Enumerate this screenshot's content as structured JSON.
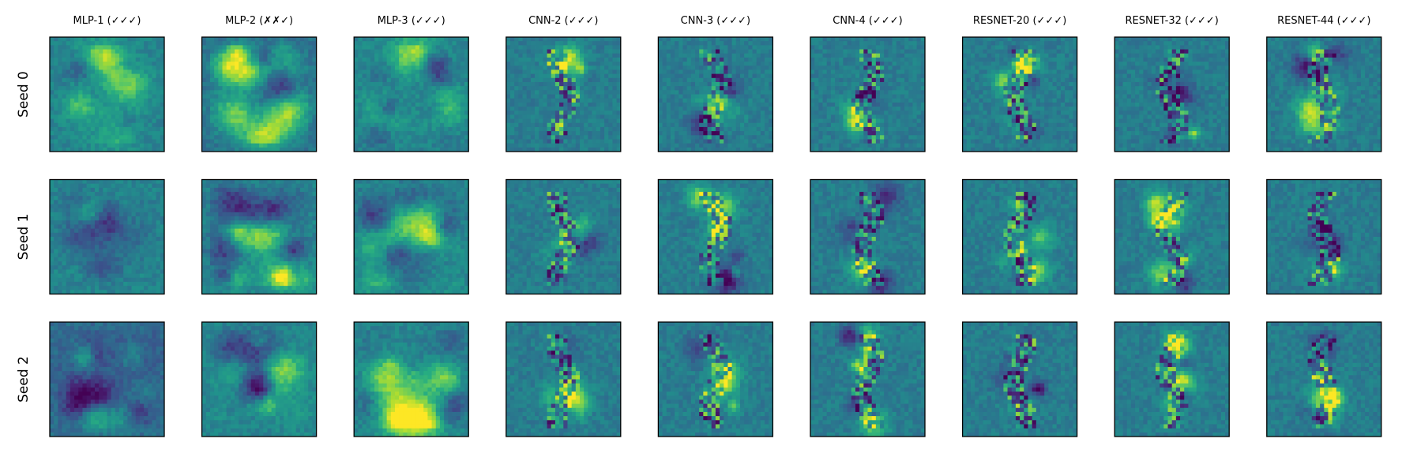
{
  "chart_data": {
    "type": "heatmap",
    "title": "",
    "colormap": "viridis",
    "colors": {
      "low": "#440154",
      "mid": "#21918c",
      "high": "#fde725",
      "frame": "#000000"
    },
    "columns": [
      "MLP-1 (✓✓✓)",
      "MLP-2 (✗✗✓)",
      "MLP-3 (✓✓✓)",
      "CNN-2 (✓✓✓)",
      "CNN-3 (✓✓✓)",
      "CNN-4 (✓✓✓)",
      "RESNET-20 (✓✓✓)",
      "RESNET-32 (✓✓✓)",
      "RESNET-44 (✓✓✓)"
    ],
    "rows": [
      "Seed 0",
      "Seed 1",
      "Seed 2"
    ],
    "pixel_grid": [
      28,
      28
    ],
    "axes_ticks": false
  }
}
